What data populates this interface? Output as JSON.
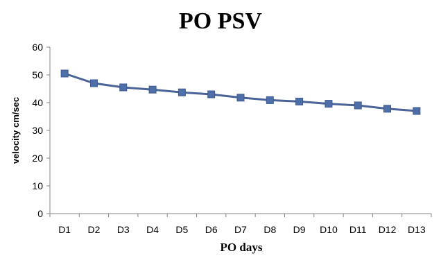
{
  "chart_data": {
    "type": "line",
    "title": "PO PSV",
    "xlabel": "PO days",
    "ylabel": "velocity cm/sec",
    "categories": [
      "D1",
      "D2",
      "D3",
      "D4",
      "D5",
      "D6",
      "D7",
      "D8",
      "D9",
      "D10",
      "D11",
      "D12",
      "D13"
    ],
    "series": [
      {
        "values": [
          50.5,
          47.0,
          45.5,
          44.7,
          43.7,
          43.0,
          41.8,
          40.9,
          40.4,
          39.6,
          39.0,
          37.8,
          37.0
        ],
        "color": "#4f6fa8"
      }
    ],
    "ylim": [
      0,
      60
    ],
    "yticks": [
      "0",
      "10",
      "20",
      "30",
      "40",
      "50",
      "60"
    ],
    "grid": false,
    "legend": "none",
    "marker": "square"
  }
}
